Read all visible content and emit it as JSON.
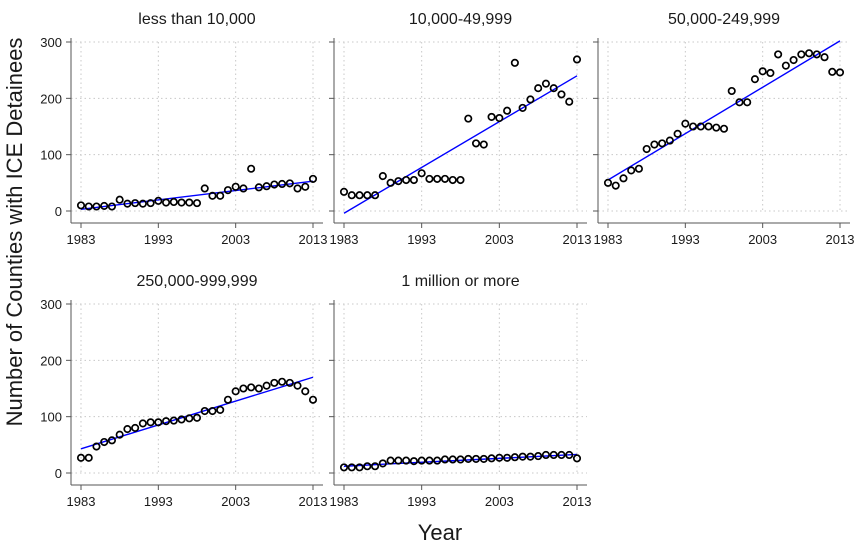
{
  "figure": {
    "ylabel": "Number of Counties with ICE Detainees",
    "xlabel": "Year"
  },
  "colors": {
    "fit_line": "#0000ff",
    "marker_edge": "#000000",
    "grid": "#c8c8c8",
    "axis": "#555555"
  },
  "chart_data": [
    {
      "type": "scatter",
      "title": "less than 10,000",
      "xlim": [
        1983,
        2013
      ],
      "ylim": [
        0,
        300
      ],
      "xticks": [
        1983,
        1993,
        2003,
        2013
      ],
      "yticks": [
        0,
        100,
        200,
        300
      ],
      "grid": true,
      "x": [
        1983,
        1984,
        1985,
        1986,
        1987,
        1988,
        1989,
        1990,
        1991,
        1992,
        1993,
        1994,
        1995,
        1996,
        1997,
        1998,
        1999,
        2000,
        2001,
        2002,
        2003,
        2004,
        2005,
        2006,
        2007,
        2008,
        2009,
        2010,
        2011,
        2012,
        2013
      ],
      "y": [
        10,
        8,
        8,
        9,
        8,
        20,
        13,
        14,
        13,
        14,
        18,
        15,
        16,
        15,
        15,
        14,
        40,
        27,
        27,
        37,
        43,
        40,
        75,
        42,
        44,
        47,
        48,
        49,
        40,
        43,
        57
      ],
      "fit": {
        "x": [
          1983,
          2013
        ],
        "y": [
          3,
          53
        ]
      }
    },
    {
      "type": "scatter",
      "title": "10,000-49,999",
      "xlim": [
        1983,
        2013
      ],
      "ylim": [
        0,
        300
      ],
      "xticks": [
        1983,
        1993,
        2003,
        2013
      ],
      "yticks": [
        0,
        100,
        200,
        300
      ],
      "grid": true,
      "x": [
        1983,
        1984,
        1985,
        1986,
        1987,
        1988,
        1989,
        1990,
        1991,
        1992,
        1993,
        1994,
        1995,
        1996,
        1997,
        1998,
        1999,
        2000,
        2001,
        2002,
        2003,
        2004,
        2005,
        2006,
        2007,
        2008,
        2009,
        2010,
        2011,
        2012,
        2013
      ],
      "y": [
        34,
        28,
        28,
        28,
        28,
        62,
        50,
        53,
        55,
        55,
        67,
        57,
        57,
        57,
        55,
        55,
        164,
        120,
        118,
        167,
        165,
        178,
        263,
        183,
        198,
        218,
        226,
        218,
        207,
        194,
        269
      ],
      "fit": {
        "x": [
          1983,
          2013
        ],
        "y": [
          -4,
          240
        ]
      }
    },
    {
      "type": "scatter",
      "title": "50,000-249,999",
      "xlim": [
        1983,
        2013
      ],
      "ylim": [
        0,
        300
      ],
      "xticks": [
        1983,
        1993,
        2003,
        2013
      ],
      "yticks": [
        0,
        100,
        200,
        300
      ],
      "grid": true,
      "x": [
        1983,
        1984,
        1985,
        1986,
        1987,
        1988,
        1989,
        1990,
        1991,
        1992,
        1993,
        1994,
        1995,
        1996,
        1997,
        1998,
        1999,
        2000,
        2001,
        2002,
        2003,
        2004,
        2005,
        2006,
        2007,
        2008,
        2009,
        2010,
        2011,
        2012,
        2013
      ],
      "y": [
        50,
        45,
        58,
        72,
        75,
        110,
        118,
        120,
        125,
        137,
        155,
        150,
        150,
        150,
        148,
        146,
        213,
        193,
        193,
        234,
        248,
        245,
        278,
        258,
        268,
        278,
        280,
        278,
        273,
        247,
        246
      ],
      "fit": {
        "x": [
          1983,
          2013
        ],
        "y": [
          55,
          302
        ]
      }
    },
    {
      "type": "scatter",
      "title": "250,000-999,999",
      "xlim": [
        1983,
        2013
      ],
      "ylim": [
        0,
        300
      ],
      "xticks": [
        1983,
        1993,
        2003,
        2013
      ],
      "yticks": [
        0,
        100,
        200,
        300
      ],
      "grid": true,
      "x": [
        1983,
        1984,
        1985,
        1986,
        1987,
        1988,
        1989,
        1990,
        1991,
        1992,
        1993,
        1994,
        1995,
        1996,
        1997,
        1998,
        1999,
        2000,
        2001,
        2002,
        2003,
        2004,
        2005,
        2006,
        2007,
        2008,
        2009,
        2010,
        2011,
        2012,
        2013
      ],
      "y": [
        27,
        27,
        47,
        55,
        58,
        68,
        78,
        80,
        88,
        90,
        90,
        92,
        93,
        95,
        97,
        98,
        110,
        110,
        112,
        130,
        145,
        150,
        152,
        150,
        155,
        160,
        162,
        160,
        155,
        145,
        130
      ],
      "fit": {
        "x": [
          1983,
          2013
        ],
        "y": [
          43,
          170
        ]
      }
    },
    {
      "type": "scatter",
      "title": "1 million or more",
      "xlim": [
        1983,
        2013
      ],
      "ylim": [
        0,
        300
      ],
      "xticks": [
        1983,
        1993,
        2003,
        2013
      ],
      "yticks": [
        0,
        100,
        200,
        300
      ],
      "grid": true,
      "x": [
        1983,
        1984,
        1985,
        1986,
        1987,
        1988,
        1989,
        1990,
        1991,
        1992,
        1993,
        1994,
        1995,
        1996,
        1997,
        1998,
        1999,
        2000,
        2001,
        2002,
        2003,
        2004,
        2005,
        2006,
        2007,
        2008,
        2009,
        2010,
        2011,
        2012,
        2013
      ],
      "y": [
        10,
        10,
        10,
        12,
        12,
        17,
        22,
        22,
        22,
        21,
        22,
        22,
        22,
        24,
        24,
        24,
        25,
        25,
        25,
        26,
        27,
        27,
        28,
        29,
        29,
        30,
        32,
        32,
        32,
        32,
        26
      ],
      "fit": {
        "x": [
          1983,
          2013
        ],
        "y": [
          12,
          33
        ]
      }
    }
  ]
}
